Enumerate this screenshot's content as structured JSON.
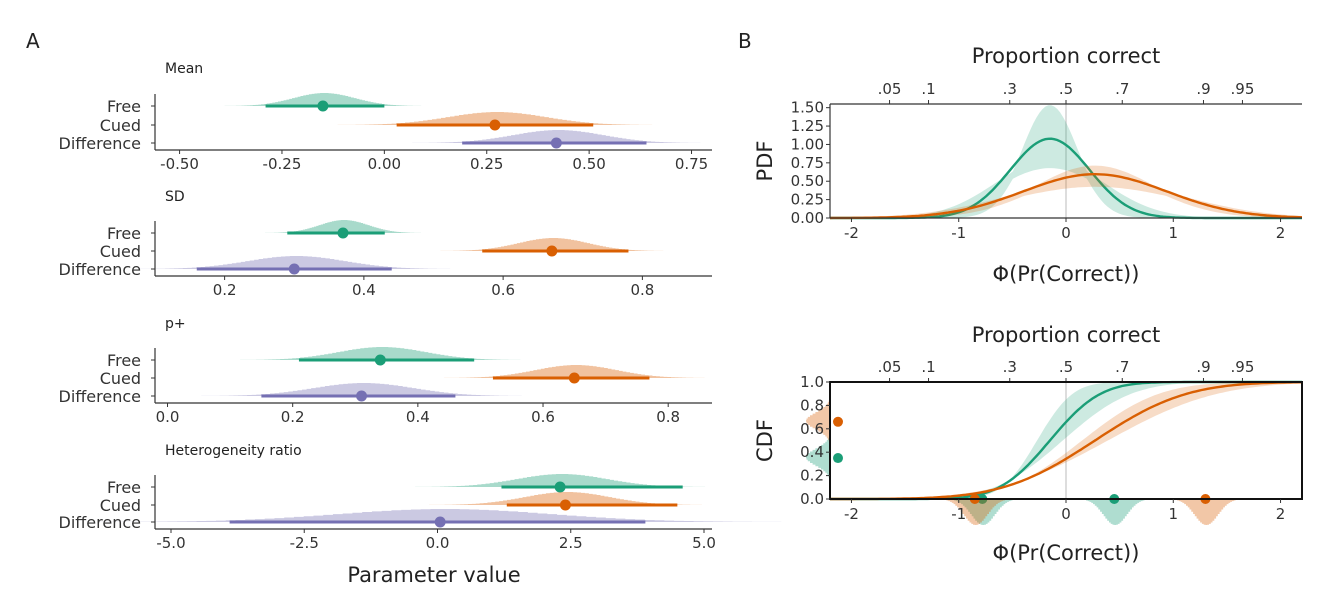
{
  "colors": {
    "free": "#1b9e77",
    "cued": "#d95f02",
    "difference": "#7570b3"
  },
  "panel_a": {
    "letter": "A",
    "xlabel": "Parameter value",
    "row_labels": [
      "Free",
      "Cued",
      "Difference"
    ]
  },
  "panel_b": {
    "letter": "B",
    "top_axis_title": "Proportion correct",
    "top_tick_labels": [
      ".05",
      ".1",
      ".3",
      ".5",
      ".7",
      ".9",
      ".95"
    ],
    "xlabel": "Φ(Pr(Correct))"
  },
  "chart_data": [
    {
      "type": "interval",
      "panel": "A",
      "title": "Mean",
      "xlim": [
        -0.56,
        0.8
      ],
      "xticks": [
        -0.5,
        -0.25,
        0,
        0.25,
        0.5,
        0.75
      ],
      "tick_labels": [
        "-0.50",
        "-0.25",
        "0.00",
        "0.25",
        "0.50",
        "0.75"
      ],
      "series": [
        {
          "name": "Free",
          "point": -0.15,
          "interval": [
            -0.29,
            0.0
          ],
          "sd": 0.075
        },
        {
          "name": "Cued",
          "point": 0.27,
          "interval": [
            0.03,
            0.51
          ],
          "sd": 0.12
        },
        {
          "name": "Difference",
          "point": 0.42,
          "interval": [
            0.19,
            0.64
          ],
          "sd": 0.11
        }
      ]
    },
    {
      "type": "interval",
      "panel": "A",
      "title": "SD",
      "xlim": [
        0.1,
        0.9
      ],
      "xticks": [
        0.2,
        0.4,
        0.6,
        0.8
      ],
      "tick_labels": [
        "0.2",
        "0.4",
        "0.6",
        "0.8"
      ],
      "series": [
        {
          "name": "Free",
          "point": 0.37,
          "interval": [
            0.29,
            0.43
          ],
          "sd": 0.035
        },
        {
          "name": "Cued",
          "point": 0.67,
          "interval": [
            0.57,
            0.78
          ],
          "sd": 0.05
        },
        {
          "name": "Difference",
          "point": 0.3,
          "interval": [
            0.16,
            0.44
          ],
          "sd": 0.07
        }
      ]
    },
    {
      "type": "interval",
      "panel": "A",
      "title": "p+",
      "xlim": [
        -0.02,
        0.87
      ],
      "xticks": [
        0,
        0.2,
        0.4,
        0.6,
        0.8
      ],
      "tick_labels": [
        "0.0",
        "0.2",
        "0.4",
        "0.6",
        "0.8"
      ],
      "series": [
        {
          "name": "Free",
          "point": 0.34,
          "interval": [
            0.21,
            0.49
          ],
          "sd": 0.07
        },
        {
          "name": "Cued",
          "point": 0.65,
          "interval": [
            0.52,
            0.77
          ],
          "sd": 0.065
        },
        {
          "name": "Difference",
          "point": 0.31,
          "interval": [
            0.15,
            0.46
          ],
          "sd": 0.08
        }
      ]
    },
    {
      "type": "interval",
      "panel": "A",
      "title": "Heterogeneity ratio",
      "xlim": [
        -5.3,
        5.15
      ],
      "xticks": [
        -5,
        -2.5,
        0,
        2.5,
        5
      ],
      "tick_labels": [
        "-5.0",
        "-2.5",
        "0.0",
        "2.5",
        "5.0"
      ],
      "series": [
        {
          "name": "Free",
          "point": 2.3,
          "interval": [
            1.2,
            4.6
          ],
          "sd": 0.85
        },
        {
          "name": "Cued",
          "point": 2.4,
          "interval": [
            1.3,
            4.5
          ],
          "sd": 0.8
        },
        {
          "name": "Difference",
          "point": 0.05,
          "interval": [
            -3.9,
            3.9
          ],
          "sd": 2.0
        }
      ]
    },
    {
      "type": "line",
      "panel": "B",
      "ylabel": "PDF",
      "xlim": [
        -2.2,
        2.2
      ],
      "xticks": [
        -2,
        -1,
        0,
        1,
        2
      ],
      "ylim": [
        0,
        1.55
      ],
      "yticks": [
        0,
        0.25,
        0.5,
        0.75,
        1.0,
        1.25,
        1.5
      ],
      "ytick_labels": [
        "0.00",
        "0.25",
        "0.50",
        "0.75",
        "1.00",
        "1.25",
        "1.50"
      ],
      "series": [
        {
          "name": "Free",
          "mean": -0.15,
          "sd": 0.37,
          "band_sd": [
            0.26,
            0.5
          ]
        },
        {
          "name": "Cued",
          "mean": 0.27,
          "sd": 0.67,
          "band_sd": [
            0.56,
            0.8
          ]
        }
      ]
    },
    {
      "type": "line",
      "panel": "B",
      "ylabel": "CDF",
      "xlim": [
        -2.2,
        2.2
      ],
      "xticks": [
        -2,
        -1,
        0,
        1,
        2
      ],
      "ylim": [
        0,
        1
      ],
      "yticks": [
        0,
        0.2,
        0.4,
        0.6,
        0.8,
        1.0
      ],
      "ytick_labels": [
        "0.0",
        "0.2",
        "0.4",
        "0.6",
        "0.8",
        "1.0"
      ],
      "series": [
        {
          "name": "Free",
          "mean": -0.15,
          "sd": 0.37,
          "band_sd": [
            0.26,
            0.5
          ],
          "p_plus": 0.35,
          "component_points": [
            -0.78,
            0.45
          ]
        },
        {
          "name": "Cued",
          "mean": 0.27,
          "sd": 0.67,
          "band_sd": [
            0.56,
            0.8
          ],
          "p_plus": 0.66,
          "component_points": [
            -0.85,
            1.3
          ]
        }
      ]
    }
  ]
}
